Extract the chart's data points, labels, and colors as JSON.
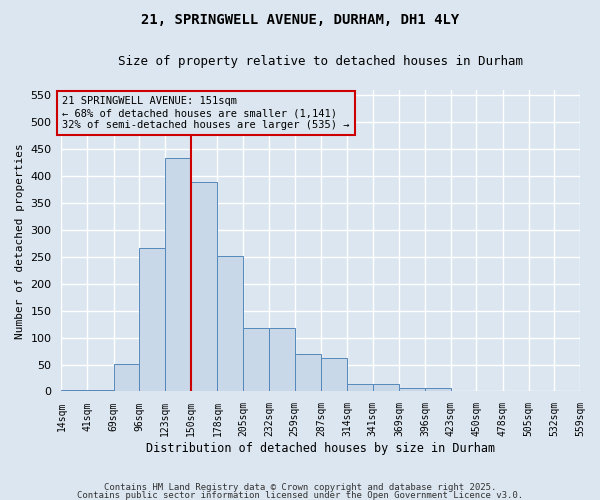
{
  "title_line1": "21, SPRINGWELL AVENUE, DURHAM, DH1 4LY",
  "title_line2": "Size of property relative to detached houses in Durham",
  "xlabel": "Distribution of detached houses by size in Durham",
  "ylabel": "Number of detached properties",
  "bin_labels": [
    "14sqm",
    "41sqm",
    "69sqm",
    "96sqm",
    "123sqm",
    "150sqm",
    "178sqm",
    "205sqm",
    "232sqm",
    "259sqm",
    "287sqm",
    "314sqm",
    "341sqm",
    "369sqm",
    "396sqm",
    "423sqm",
    "450sqm",
    "478sqm",
    "505sqm",
    "532sqm",
    "559sqm"
  ],
  "bin_edges": [
    14,
    41,
    69,
    96,
    123,
    150,
    178,
    205,
    232,
    259,
    287,
    314,
    341,
    369,
    396,
    423,
    450,
    478,
    505,
    532,
    559
  ],
  "bar_heights": [
    2,
    2,
    51,
    267,
    433,
    390,
    251,
    117,
    117,
    70,
    62,
    14,
    14,
    6,
    6,
    0,
    1,
    0,
    0,
    1,
    0
  ],
  "bar_facecolor": "#c8d8e8",
  "bar_edgecolor": "#5588bb",
  "property_line_x": 150,
  "property_line_color": "#cc0000",
  "annotation_text": "21 SPRINGWELL AVENUE: 151sqm\n← 68% of detached houses are smaller (1,141)\n32% of semi-detached houses are larger (535) →",
  "annotation_box_color": "#cc0000",
  "ylim": [
    0,
    560
  ],
  "yticks": [
    0,
    50,
    100,
    150,
    200,
    250,
    300,
    350,
    400,
    450,
    500,
    550
  ],
  "background_color": "#dce6f0",
  "grid_color": "#ffffff",
  "footer_line1": "Contains HM Land Registry data © Crown copyright and database right 2025.",
  "footer_line2": "Contains public sector information licensed under the Open Government Licence v3.0."
}
